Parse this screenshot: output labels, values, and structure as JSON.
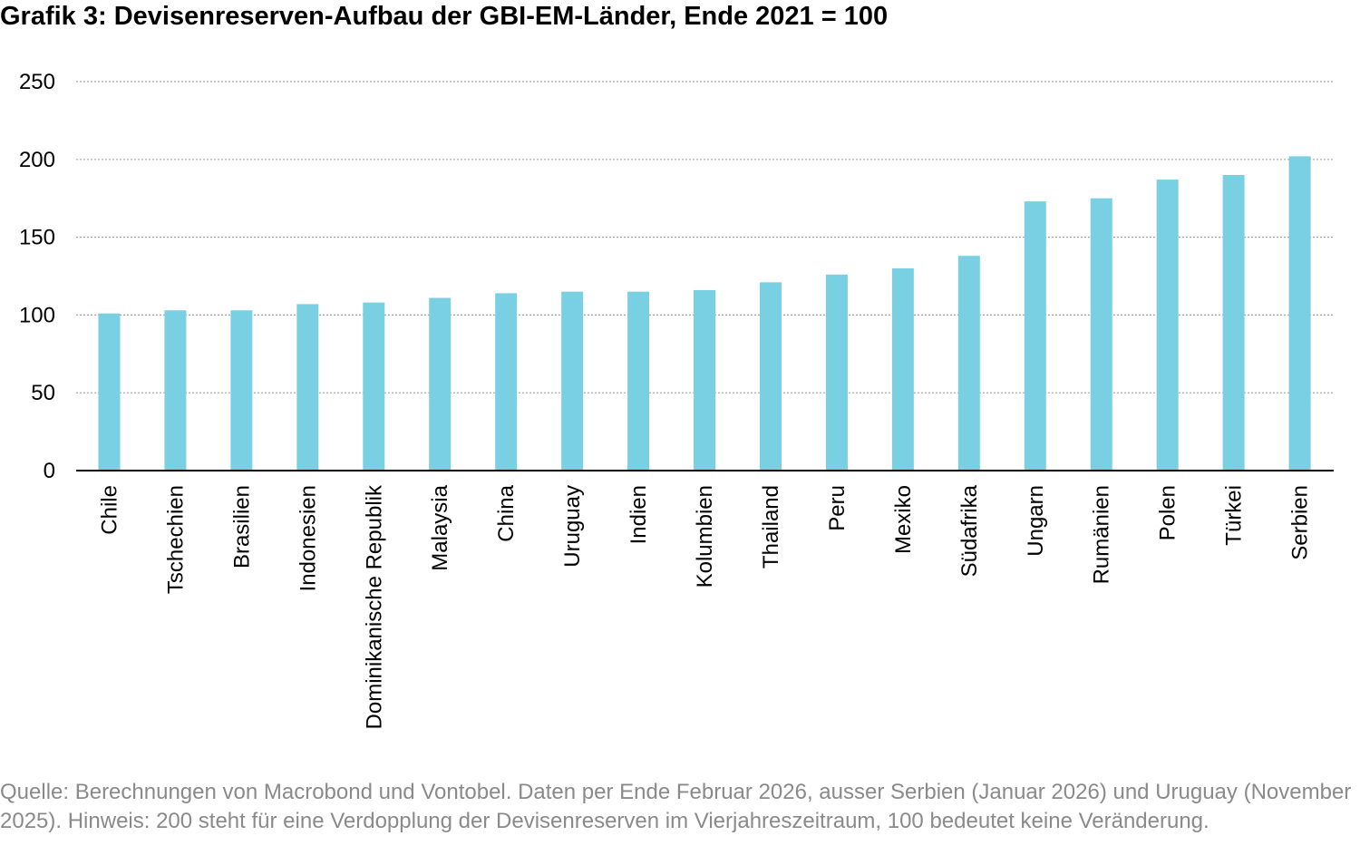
{
  "title": "Grafik 3: Devisenreserven-Aufbau der GBI-EM-Länder, Ende 2021 = 100",
  "source_note": "Quelle: Berechnungen von Macrobond und Vontobel. Daten per Ende Februar 2026, ausser Serbien (Januar 2026) und Uruguay (November 2025). Hinweis: 200 steht für eine Verdopplung der Devisenreserven im Vierjahreszeitraum, 100 bedeutet keine Veränderung.",
  "colors": {
    "bar": "#7ad0e3",
    "grid": "#a6a6a6",
    "axis": "#000000",
    "text": "#000000",
    "note": "#8a8a8a"
  },
  "chart_data": {
    "type": "bar",
    "title": "Grafik 3: Devisenreserven-Aufbau der GBI-EM-Länder, Ende 2021 = 100",
    "categories": [
      "Chile",
      "Tschechien",
      "Brasilien",
      "Indonesien",
      "Dominikanische Republik",
      "Malaysia",
      "China",
      "Uruguay",
      "Indien",
      "Kolumbien",
      "Thailand",
      "Peru",
      "Mexiko",
      "Südafrika",
      "Ungarn",
      "Rumänien",
      "Polen",
      "Türkei",
      "Serbien"
    ],
    "values": [
      101,
      103,
      103,
      107,
      108,
      111,
      114,
      115,
      115,
      116,
      121,
      126,
      130,
      138,
      173,
      175,
      187,
      190,
      202
    ],
    "xlabel": "",
    "ylabel": "",
    "ylim": [
      0,
      250
    ],
    "yticks": [
      0,
      50,
      100,
      150,
      200,
      250
    ],
    "grid": true,
    "grid_style": "dotted",
    "legend": false
  }
}
